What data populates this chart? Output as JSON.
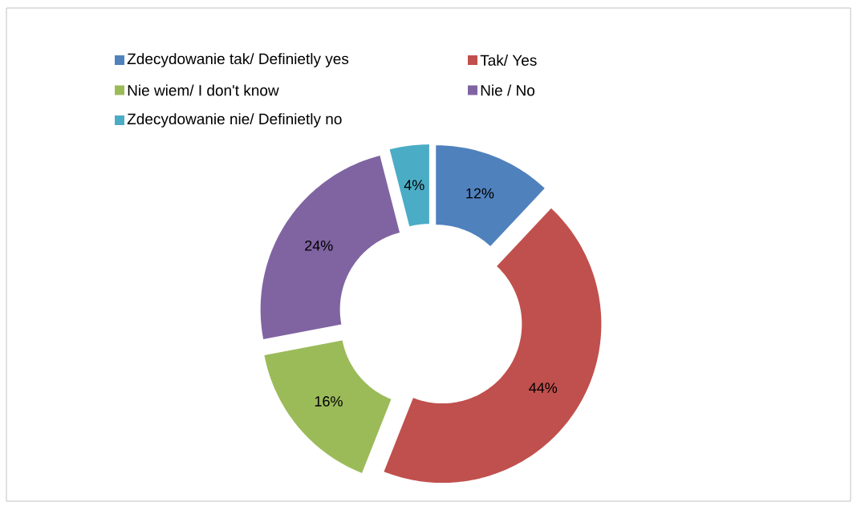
{
  "chart_data": {
    "type": "donut",
    "categories": [
      "Zdecydowanie tak/ Definietly yes",
      "Tak/ Yes",
      "Nie wiem/ I don't know",
      "Nie / No",
      "Zdecydowanie nie/ Definietly no"
    ],
    "values": [
      12,
      44,
      16,
      24,
      4
    ],
    "colors": [
      "#4f81bd",
      "#c0504d",
      "#9bbb59",
      "#8064a2",
      "#4bacc6"
    ],
    "value_labels": [
      "12%",
      "44%",
      "16%",
      "24%",
      "4%"
    ],
    "legend": "top"
  }
}
